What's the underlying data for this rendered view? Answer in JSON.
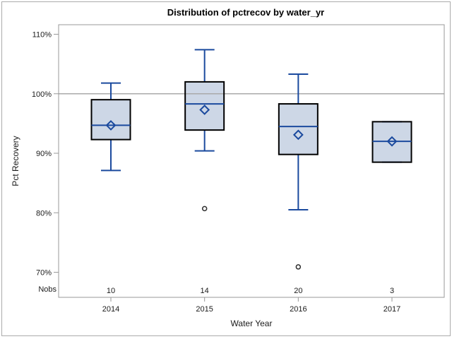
{
  "window": {
    "background": "#ffffff",
    "frame_border_color": "#ababab"
  },
  "chart_data": {
    "type": "boxplot",
    "title": "Distribution of pctrecov by water_yr",
    "xlabel": "Water Year",
    "ylabel": "Pct Recovery",
    "nobs_label": "Nobs",
    "categories": [
      "2014",
      "2015",
      "2016",
      "2017"
    ],
    "nobs": [
      "10",
      "14",
      "20",
      "3"
    ],
    "y_ticks": [
      {
        "label": "110%",
        "value": 110
      },
      {
        "label": "100%",
        "value": 100
      },
      {
        "label": "90%",
        "value": 90
      },
      {
        "label": "80%",
        "value": 80
      },
      {
        "label": "70%",
        "value": 70
      }
    ],
    "ylim": [
      65.7,
      111.5
    ],
    "reference_line_value": 100,
    "grid": false,
    "legend_position": "none",
    "series": [
      {
        "category": "2014",
        "whisker_low": 87.1,
        "q1": 92.3,
        "median": 94.7,
        "q3": 99.0,
        "whisker_high": 101.8,
        "mean": 94.7,
        "outliers": []
      },
      {
        "category": "2015",
        "whisker_low": 90.4,
        "q1": 93.9,
        "median": 98.3,
        "q3": 102.0,
        "whisker_high": 107.4,
        "mean": 97.3,
        "outliers": [
          80.7
        ]
      },
      {
        "category": "2016",
        "whisker_low": 80.5,
        "q1": 89.8,
        "median": 94.5,
        "q3": 98.3,
        "whisker_high": 103.3,
        "mean": 93.1,
        "outliers": [
          70.9
        ]
      },
      {
        "category": "2017",
        "whisker_low": 88.5,
        "q1": 88.5,
        "median": 92.0,
        "q3": 95.3,
        "whisker_high": 95.3,
        "mean": 92.0,
        "outliers": []
      }
    ],
    "colors": {
      "box_fill": "#cdd7e6",
      "box_border": "#000000",
      "whisker_median_mean_blue": "#1b4a9e",
      "reference_line_gray": "#a9a9a9",
      "axis_gray": "#999999",
      "tick_text": "#1a1a1a",
      "outlier_stroke": "#2f2f2f"
    }
  }
}
